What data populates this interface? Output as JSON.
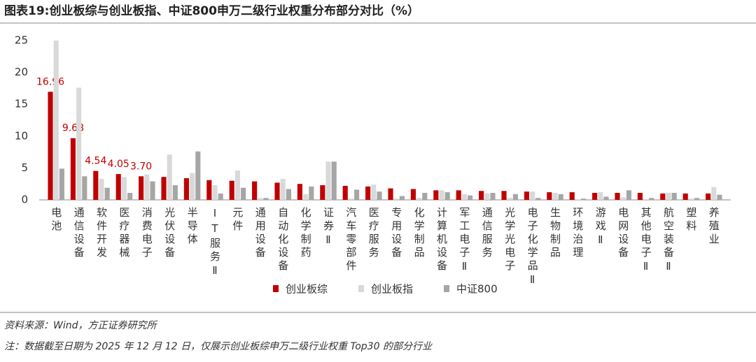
{
  "chart_data": {
    "type": "bar",
    "title": "图表19:创业板综与创业板指、中证800申万二级行业权重分布部分对比（%）",
    "categories": [
      "电池",
      "通信设备",
      "软件开发",
      "医疗器械",
      "消费电子",
      "光伏设备",
      "半导体",
      "IT服务Ⅱ",
      "元件",
      "通用设备",
      "自动化设备",
      "化学制药",
      "证券Ⅱ",
      "汽车零部件",
      "医疗服务",
      "专用设备",
      "化学制品",
      "计算机设备",
      "军工电子Ⅱ",
      "通信服务",
      "光学光电子",
      "电子化学品Ⅱ",
      "生物制品",
      "环境治理",
      "游戏Ⅱ",
      "电网设备",
      "其他电子Ⅱ",
      "航空装备Ⅱ",
      "塑料",
      "养殖业"
    ],
    "series": [
      {
        "name": "创业板综",
        "color": "#c00000",
        "values": [
          16.96,
          9.68,
          4.54,
          4.05,
          3.7,
          3.6,
          3.4,
          3.1,
          3.0,
          2.9,
          2.7,
          2.5,
          2.3,
          2.2,
          2.1,
          1.8,
          1.7,
          1.5,
          1.5,
          1.4,
          1.4,
          1.3,
          1.2,
          1.2,
          1.1,
          1.1,
          1.1,
          1.0,
          1.0,
          1.0
        ],
        "value_labels": [
          "16.96",
          "9.68",
          "4.54",
          "4.05",
          "3.70",
          null,
          null,
          null,
          null,
          null,
          null,
          null,
          null,
          null,
          null,
          null,
          null,
          null,
          null,
          null,
          null,
          null,
          null,
          null,
          null,
          null,
          null,
          null,
          null,
          null
        ]
      },
      {
        "name": "创业板指",
        "color": "#d9d9d9",
        "values": [
          25.0,
          17.6,
          3.3,
          3.6,
          4.0,
          7.1,
          4.2,
          2.3,
          4.6,
          0.3,
          3.3,
          0.9,
          6.0,
          0.2,
          2.4,
          0.2,
          0.3,
          1.5,
          0.9,
          1.0,
          0.3,
          1.3,
          1.1,
          0.1,
          1.2,
          0.4,
          0.1,
          1.1,
          0.2,
          2.0
        ]
      },
      {
        "name": "中证800",
        "color": "#a6a6a6",
        "values": [
          4.9,
          3.7,
          1.9,
          1.1,
          2.9,
          2.3,
          7.6,
          1.0,
          1.9,
          0.3,
          1.7,
          2.1,
          6.0,
          1.6,
          1.3,
          0.6,
          1.1,
          1.2,
          0.7,
          1.1,
          0.9,
          0.3,
          0.9,
          0.2,
          0.5,
          1.5,
          0.3,
          1.1,
          0.3,
          0.8
        ]
      }
    ],
    "ylim": [
      0,
      25
    ],
    "yticks": [
      0,
      5,
      10,
      15,
      20,
      25
    ],
    "grid": false,
    "source": "资料来源：Wind，方正证券研究所",
    "note": "注：数据截至日期为 2025 年 12 月 12 日，仅展示创业板综申万二级行业权重 Top30 的部分行业"
  }
}
